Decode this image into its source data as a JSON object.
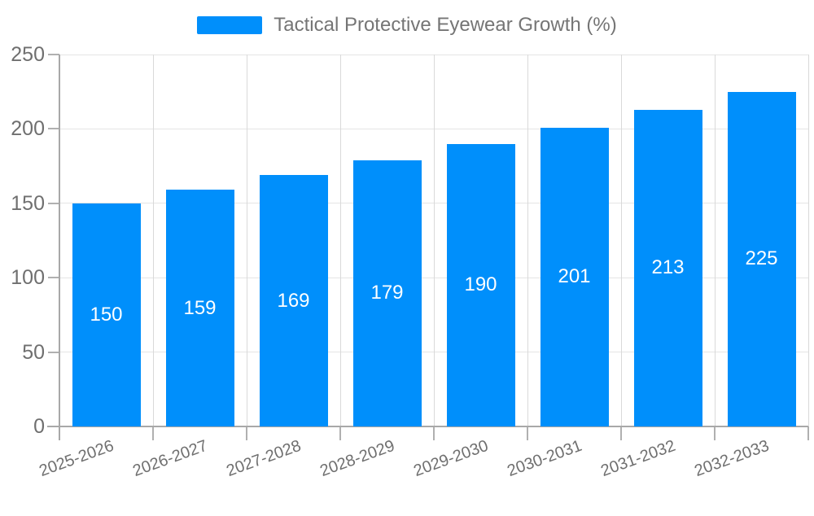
{
  "legend": {
    "items": [
      {
        "label": "Tactical Protective Eyewear Growth (%)",
        "color": "#008FFB"
      }
    ]
  },
  "chart_data": {
    "type": "bar",
    "title": "Tactical Protective Eyewear Growth (%)",
    "categories": [
      "2025-2026",
      "2026-2027",
      "2027-2028",
      "2028-2029",
      "2029-2030",
      "2030-2031",
      "2031-2032",
      "2032-2033"
    ],
    "series": [
      {
        "name": "Tactical Protective Eyewear Growth (%)",
        "values": [
          150,
          159,
          169,
          179,
          190,
          201,
          213,
          225
        ]
      }
    ],
    "value_labels_shown": true,
    "xlabel": "",
    "ylabel": "",
    "ylim": [
      0,
      250
    ],
    "yticks": [
      0,
      50,
      100,
      150,
      200,
      250
    ],
    "grid": true,
    "legend_position": "top",
    "x_label_rotation_deg": -20,
    "colors": {
      "bar": "#008FFB",
      "value_label": "#FFFFFF",
      "axis_label": "#6F6F6F",
      "legend_text": "#757575",
      "grid_horizontal": "#E4E4E4",
      "grid_vertical": "#D9D9D9",
      "axis_line": "#A8A8A8",
      "tick": "#B0B0B0",
      "background": "#FFFFFF"
    }
  }
}
